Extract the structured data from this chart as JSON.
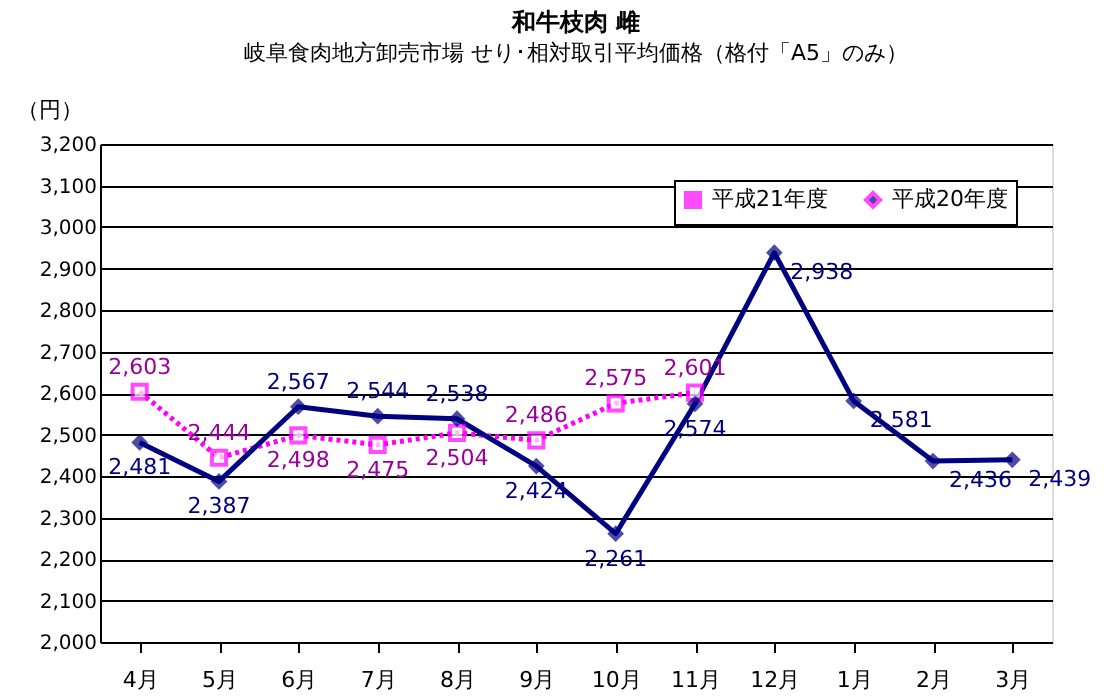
{
  "chart_data": {
    "type": "line",
    "title": "和牛枝肉 雌",
    "subtitle": "岐阜食肉地方卸売市場 せり･相対取引平均価格（格付「A5」のみ）",
    "ylabel": "（円）",
    "categories": [
      "4月",
      "5月",
      "6月",
      "7月",
      "8月",
      "9月",
      "10月",
      "11月",
      "12月",
      "1月",
      "2月",
      "3月"
    ],
    "series": [
      {
        "name": "平成21年度",
        "color": "#ff00ff",
        "marker": "square",
        "line_style": "dotted",
        "values": [
          2603,
          2444,
          2498,
          2475,
          2504,
          2486,
          2575,
          2601,
          null,
          null,
          null,
          null
        ],
        "value_labels": [
          "2,603",
          "2,444",
          "2,498",
          "2,475",
          "2,504",
          "2,486",
          "2,575",
          "2,601",
          null,
          null,
          null,
          null
        ]
      },
      {
        "name": "平成20年度",
        "color": "#000080",
        "marker": "diamond",
        "line_style": "solid",
        "values": [
          2481,
          2387,
          2567,
          2544,
          2538,
          2424,
          2261,
          2574,
          2938,
          2581,
          2436,
          2439
        ],
        "value_labels": [
          "2,481",
          "2,387",
          "2,567",
          "2,544",
          "2,538",
          "2,424",
          "2,261",
          "2,574",
          "2,938",
          "2,581",
          "2,436",
          "2,439"
        ]
      }
    ],
    "ylim": [
      2000,
      3200
    ],
    "yticks": [
      {
        "value": 2000,
        "label": "2,000"
      },
      {
        "value": 2100,
        "label": "2,100"
      },
      {
        "value": 2200,
        "label": "2,200"
      },
      {
        "value": 2300,
        "label": "2,300"
      },
      {
        "value": 2400,
        "label": "2,400"
      },
      {
        "value": 2500,
        "label": "2,500"
      },
      {
        "value": 2600,
        "label": "2,600"
      },
      {
        "value": 2700,
        "label": "2,700"
      },
      {
        "value": 2800,
        "label": "2,800"
      },
      {
        "value": 2900,
        "label": "2,900"
      },
      {
        "value": 3000,
        "label": "3,000"
      },
      {
        "value": 3100,
        "label": "3,100"
      },
      {
        "value": 3200,
        "label": "3,200"
      }
    ],
    "grid": "y",
    "legend": "top right",
    "data_labels": true
  }
}
